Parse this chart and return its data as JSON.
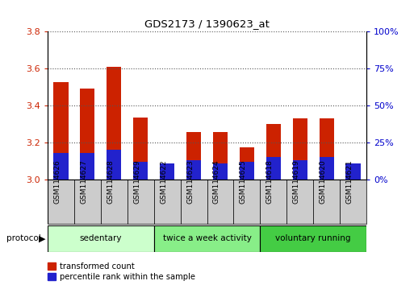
{
  "title": "GDS2173 / 1390623_at",
  "samples": [
    "GSM114626",
    "GSM114627",
    "GSM114628",
    "GSM114629",
    "GSM114622",
    "GSM114623",
    "GSM114624",
    "GSM114625",
    "GSM114618",
    "GSM114619",
    "GSM114620",
    "GSM114621"
  ],
  "transformed_count": [
    3.525,
    3.49,
    3.61,
    3.335,
    3.085,
    3.255,
    3.255,
    3.175,
    3.3,
    3.33,
    3.33,
    3.075
  ],
  "percentile_rank_pct": [
    18,
    18,
    20,
    12,
    11,
    13,
    11,
    12,
    15,
    13,
    15,
    11
  ],
  "ymin": 3.0,
  "ymax": 3.8,
  "yticks": [
    3.0,
    3.2,
    3.4,
    3.6,
    3.8
  ],
  "right_yticks_pct": [
    0,
    25,
    50,
    75,
    100
  ],
  "right_ytick_labels": [
    "0%",
    "25%",
    "50%",
    "75%",
    "100%"
  ],
  "bar_color": "#cc2200",
  "percentile_color": "#2222cc",
  "groups": [
    {
      "label": "sedentary",
      "start": 0,
      "end": 4,
      "color": "#ccffcc"
    },
    {
      "label": "twice a week activity",
      "start": 4,
      "end": 8,
      "color": "#88ee88"
    },
    {
      "label": "voluntary running",
      "start": 8,
      "end": 12,
      "color": "#44cc44"
    }
  ],
  "protocol_label": "protocol",
  "legend_transformed": "transformed count",
  "legend_percentile": "percentile rank within the sample",
  "bar_width": 0.55,
  "tick_label_color_left": "#cc2200",
  "tick_label_color_right": "#0000cc",
  "sample_box_color": "#cccccc",
  "fig_bg": "#ffffff"
}
